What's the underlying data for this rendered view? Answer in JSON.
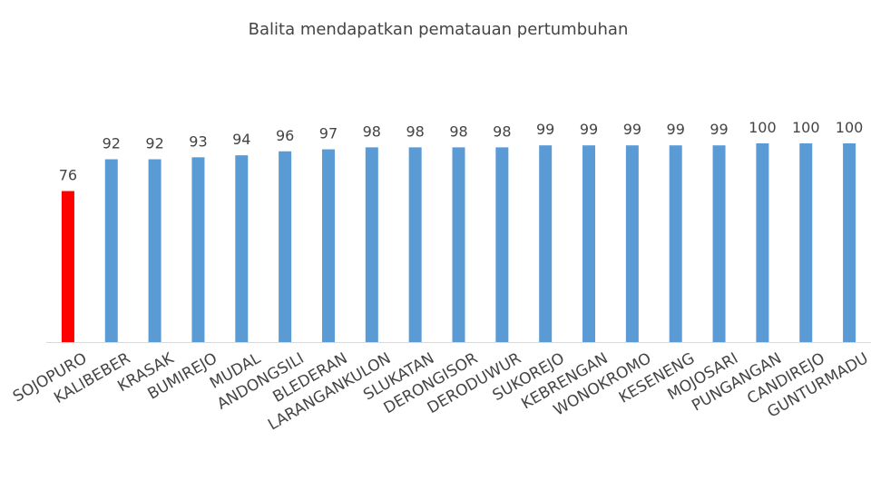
{
  "chart_data": {
    "type": "bar",
    "title": "Balita mendapatkan pematauan pertumbuhan",
    "categories": [
      "SOJOPURO",
      "KALIBEBER",
      "KRASAK",
      "BUMIREJO",
      "MUDAL",
      "ANDONGSILI",
      "BLEDERAN",
      "LARANGANKULON",
      "SLUKATAN",
      "DERONGISOR",
      "DERODUWUR",
      "SUKOREJO",
      "KEBRENGAN",
      "WONOKROMO",
      "KESENENG",
      "MOJOSARI",
      "PUNGANGAN",
      "CANDIREJO",
      "GUNTURMADU"
    ],
    "values": [
      76,
      92,
      92,
      93,
      94,
      96,
      97,
      98,
      98,
      98,
      98,
      99,
      99,
      99,
      99,
      99,
      100,
      100,
      100
    ],
    "colors": [
      "#ff0000",
      "#5b9bd5",
      "#5b9bd5",
      "#5b9bd5",
      "#5b9bd5",
      "#5b9bd5",
      "#5b9bd5",
      "#5b9bd5",
      "#5b9bd5",
      "#5b9bd5",
      "#5b9bd5",
      "#5b9bd5",
      "#5b9bd5",
      "#5b9bd5",
      "#5b9bd5",
      "#5b9bd5",
      "#5b9bd5",
      "#5b9bd5",
      "#5b9bd5"
    ],
    "ylim": [
      0,
      100
    ]
  }
}
